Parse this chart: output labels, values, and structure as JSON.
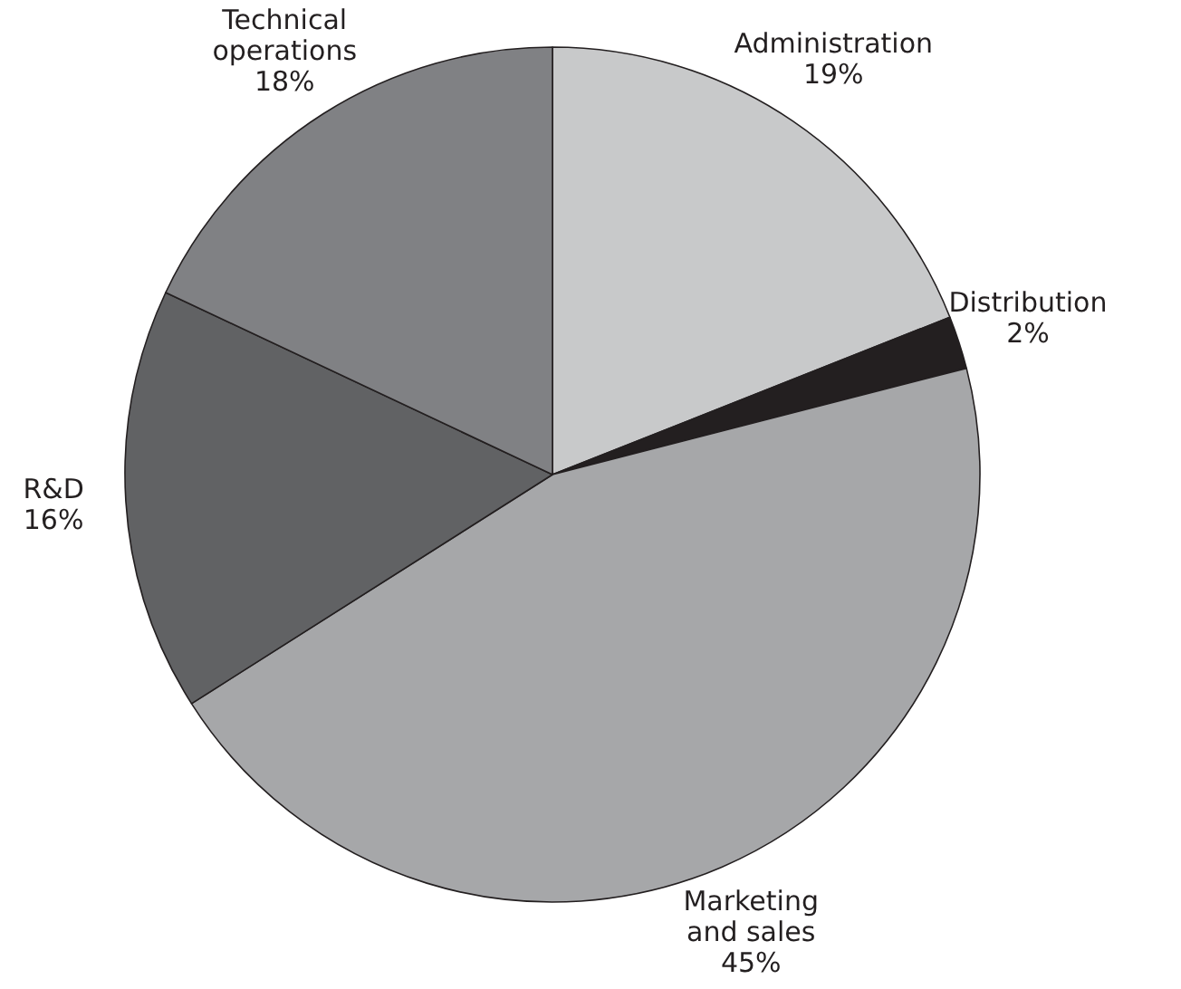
{
  "chart_data": {
    "type": "pie",
    "categories": [
      "Administration",
      "Distribution",
      "Marketing and sales",
      "R&D",
      "Technical operations"
    ],
    "values": [
      19,
      2,
      45,
      16,
      18
    ],
    "value_labels": [
      "19%",
      "2%",
      "45%",
      "16%",
      "18%"
    ],
    "colors": [
      "#c8c9ca",
      "#231f20",
      "#a6a7a9",
      "#616264",
      "#808184"
    ]
  }
}
